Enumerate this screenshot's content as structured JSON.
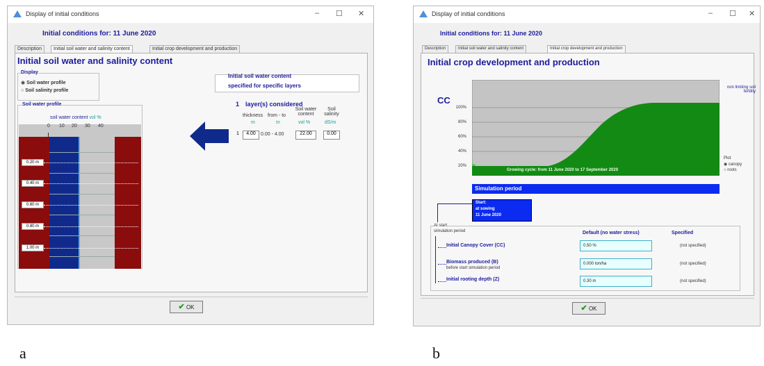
{
  "dialog_a": {
    "window_title": "Display of initial conditions",
    "date_title": "Initial conditions for: 11 June 2020",
    "tabs": [
      "Description",
      "Initial soil water and salinity content",
      "Initial crop development and production"
    ],
    "heading": "Initial soil water and salinity content",
    "display_label": "Display",
    "radio_water": "Soil water profile",
    "radio_salinity": "Soil salinity profile",
    "soil_water_profile_label": "Soil water profile",
    "soil_water_content_label": "soil water content",
    "vol_pct": "vol %",
    "scale_ticks": [
      "0",
      "10",
      "20",
      "30",
      "40"
    ],
    "depths": [
      "0.20 m",
      "0.40 m",
      "0.60 m",
      "0.80 m",
      "1.00 m"
    ],
    "specified_line1": "Initial soil water content",
    "specified_line2": "specified for specific layers",
    "layers_count": "1",
    "layers_label": "layer(s) considered",
    "col_thickness": "thickness",
    "col_from_to": "from - to",
    "col_soil_water": "Soil water content",
    "col_soil_salinity": "Soil salinity",
    "unit_m1": "m",
    "unit_m2": "m",
    "unit_vol": "vol %",
    "unit_ds": "dS/m",
    "row": {
      "num": "1",
      "thickness": "4.00",
      "from_to": "0.00 - 4.00",
      "water": "22.00",
      "salinity": "0.00"
    },
    "ok_label": "OK",
    "caption": "a"
  },
  "dialog_b": {
    "window_title": "Display of initial conditions",
    "date_title": "Initial conditions for: 11 June 2020",
    "tabs": [
      "Description",
      "Initial soil water and salinity content",
      "Initial crop development and production"
    ],
    "heading": "Initial crop development and production",
    "cc_label": "CC",
    "y_ticks": [
      "100%",
      "80%",
      "60%",
      "40%",
      "20%"
    ],
    "non_limiting": "non limiting soil fertility",
    "plot_label": "Plot",
    "plot_canopy": "canopy",
    "plot_roots": "roots",
    "growing_cycle": "Growing cycle: from 11 June 2020 to 17 September 2020",
    "simulation_period": "Simulation period",
    "start_line1": "Start:",
    "start_line2": "at sowing",
    "start_line3": "11 June 2020",
    "at_start_line1": "At start",
    "at_start_line2": "simulation period",
    "col_default": "Default (no water stress)",
    "col_specified": "Specified",
    "params": [
      {
        "label": "Initial Canopy Cover (CC)",
        "sub": "",
        "value": "0.50 %",
        "specified": "(not specified)"
      },
      {
        "label": "Biomass produced (B)",
        "sub": "before start simulation period",
        "value": "0.000 ton/ha",
        "specified": "(not specified)"
      },
      {
        "label": "Initial rooting depth (Z)",
        "sub": "",
        "value": "0.30 m",
        "specified": "(not specified)"
      }
    ],
    "ok_label": "OK",
    "caption": "b"
  },
  "colors": {
    "accent": "#1c1c9c",
    "canopy": "#138a13",
    "simulation": "#0b2bf0",
    "soil": "#8b0c0c",
    "water": "#102a8c"
  }
}
